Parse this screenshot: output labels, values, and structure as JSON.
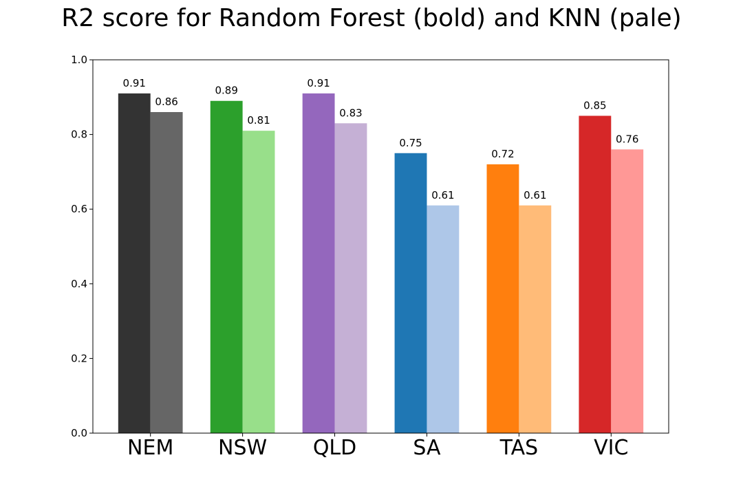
{
  "chart_data": {
    "type": "bar",
    "title": "R2 score for Random Forest (bold) and KNN (pale)",
    "xlabel": "",
    "ylabel": "",
    "categories": [
      "NEM",
      "NSW",
      "QLD",
      "SA",
      "TAS",
      "VIC"
    ],
    "ylim": [
      0,
      1.0
    ],
    "yticks": [
      "0.0",
      "0.2",
      "0.4",
      "0.6",
      "0.8",
      "1.0"
    ],
    "grid": false,
    "series": [
      {
        "values": [
          0.91,
          0.89,
          0.91,
          0.75,
          0.72,
          0.85
        ],
        "labels": [
          "0.91",
          "0.89",
          "0.91",
          "0.75",
          "0.72",
          "0.85"
        ],
        "colors": [
          "#333333",
          "#2ca02c",
          "#9467bd",
          "#1f77b4",
          "#ff7f0e",
          "#d62728"
        ]
      },
      {
        "values": [
          0.86,
          0.81,
          0.83,
          0.61,
          0.61,
          0.76
        ],
        "labels": [
          "0.86",
          "0.81",
          "0.83",
          "0.61",
          "0.61",
          "0.76"
        ],
        "colors": [
          "#666666",
          "#98df8a",
          "#c5b0d5",
          "#aec7e8",
          "#ffbb78",
          "#ff9896"
        ]
      }
    ]
  }
}
